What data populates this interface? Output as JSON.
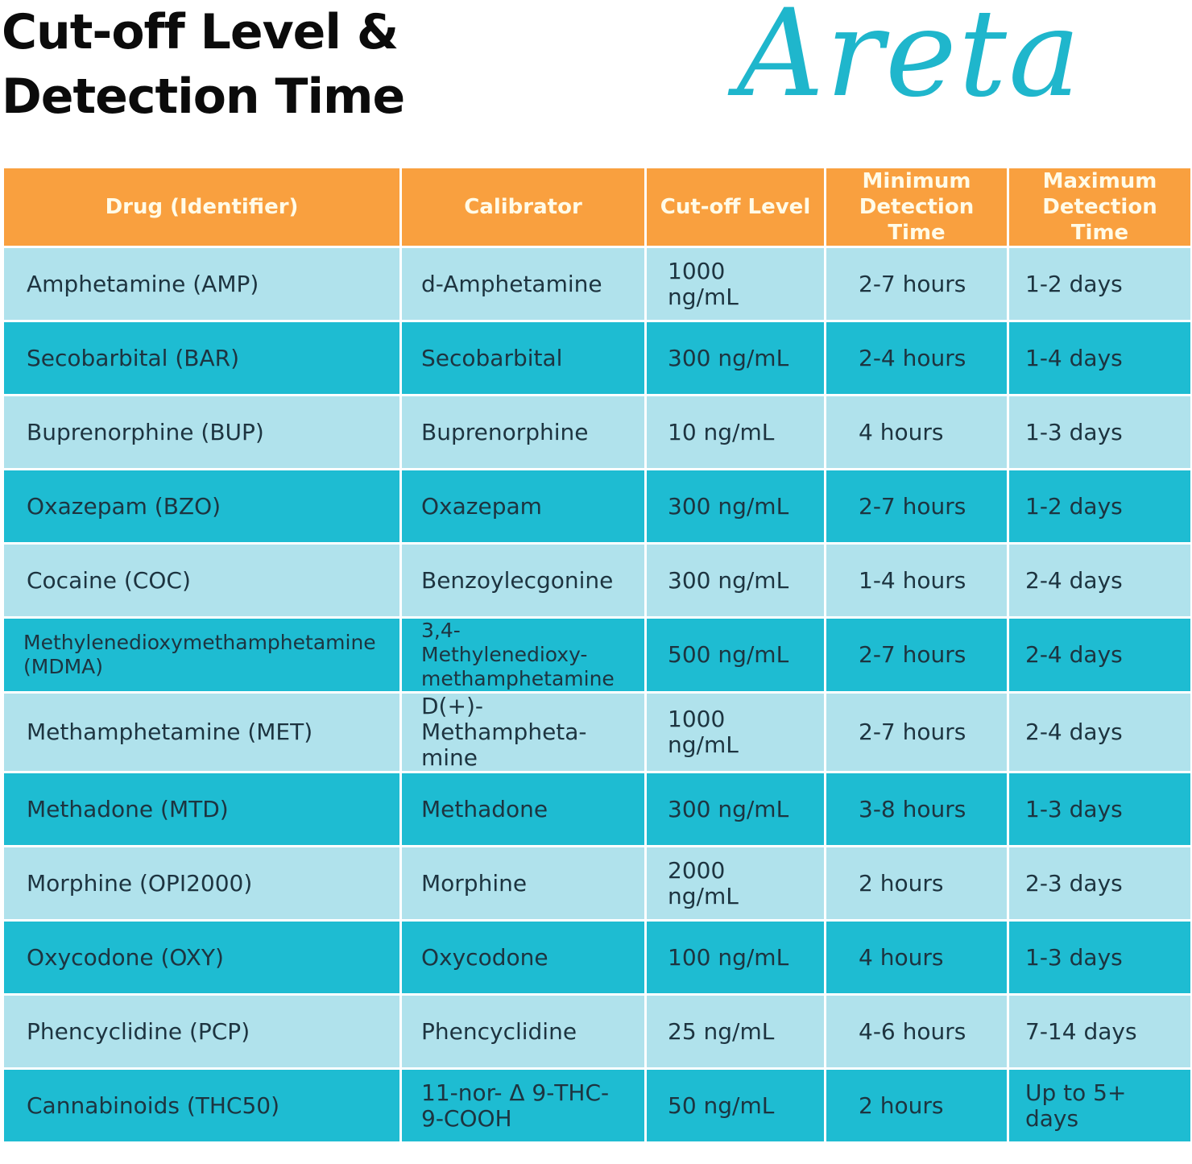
{
  "title_line1": "Cut-off Level &",
  "title_line2": "Detection Time",
  "logo": "Areta",
  "colors": {
    "header": "#f9a03f",
    "row_light": "#b0e2ec",
    "row_dark": "#1ebcd2",
    "logo": "#1fb6cc"
  },
  "columns": [
    "Drug (Identifier)",
    "Calibrator",
    "Cut-off Level",
    "Minimum Detection Time",
    "Maximum Detection Time"
  ],
  "rows": [
    [
      "Amphetamine (AMP)",
      "d-Amphetamine",
      "1000 ng/mL",
      "2-7 hours",
      "1-2 days"
    ],
    [
      "Secobarbital (BAR)",
      "Secobarbital",
      "300 ng/mL",
      "2-4 hours",
      "1-4 days"
    ],
    [
      "Buprenorphine (BUP)",
      "Buprenorphine",
      "10 ng/mL",
      "4 hours",
      "1-3 days"
    ],
    [
      "Oxazepam (BZO)",
      "Oxazepam",
      "300 ng/mL",
      "2-7 hours",
      "1-2 days"
    ],
    [
      "Cocaine (COC)",
      "Benzoylecgonine",
      "300 ng/mL",
      "1-4 hours",
      "2-4 days"
    ],
    [
      "Methylenedioxymethamphetamine (MDMA)",
      "3,4-Methylenedioxy-methamphetamine",
      "500 ng/mL",
      "2-7 hours",
      "2-4 days"
    ],
    [
      "Methamphetamine (MET)",
      "D(+)-Methampheta-mine",
      "1000 ng/mL",
      "2-7 hours",
      "2-4 days"
    ],
    [
      "Methadone (MTD)",
      "Methadone",
      "300 ng/mL",
      "3-8 hours",
      "1-3 days"
    ],
    [
      "Morphine (OPI2000)",
      "Morphine",
      "2000 ng/mL",
      "2 hours",
      "2-3 days"
    ],
    [
      "Oxycodone (OXY)",
      "Oxycodone",
      "100 ng/mL",
      "4 hours",
      "1-3 days"
    ],
    [
      "Phencyclidine (PCP)",
      "Phencyclidine",
      "25 ng/mL",
      "4-6 hours",
      "7-14 days"
    ],
    [
      "Cannabinoids (THC50)",
      "11-nor- Δ 9-THC-9-COOH",
      "50 ng/mL",
      "2 hours",
      "Up to 5+ days"
    ]
  ]
}
